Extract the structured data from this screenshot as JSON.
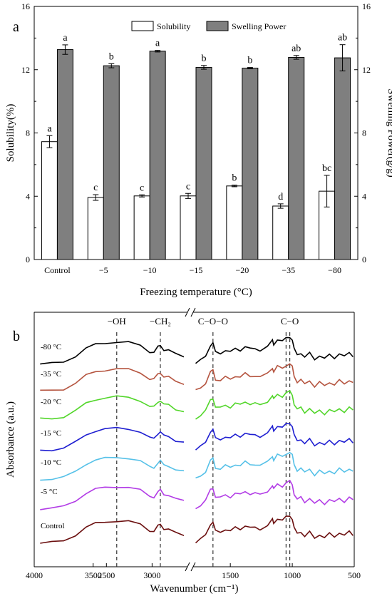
{
  "chart_data": [
    {
      "type": "bar",
      "panel_label": "a",
      "categories": [
        "Control",
        "−5",
        "−10",
        "−15",
        "−20",
        "−35",
        "−80"
      ],
      "xlabel": "Freezing temperature (°C)",
      "ylabel": "Solubility(%)",
      "ylabel_right": "Swelling Power(g/g)",
      "ylim": [
        0,
        16
      ],
      "yticks": [
        0,
        4,
        8,
        12,
        16
      ],
      "legend_position": "top-center",
      "series": [
        {
          "name": "Solubility",
          "color": "#ffffff",
          "values": [
            7.45,
            3.92,
            4.02,
            4.02,
            4.65,
            3.38,
            4.32
          ],
          "errors": [
            0.38,
            0.18,
            0.07,
            0.16,
            0.05,
            0.14,
            1.0
          ],
          "letters": [
            "a",
            "c",
            "c",
            "c",
            "b",
            "d",
            "bc"
          ]
        },
        {
          "name": "Swelling Power",
          "color": "#7f7f7f",
          "values": [
            13.27,
            12.25,
            13.17,
            12.15,
            12.1,
            12.78,
            12.75
          ],
          "errors": [
            0.3,
            0.13,
            0.05,
            0.12,
            0.04,
            0.12,
            0.83
          ],
          "letters": [
            "a",
            "b",
            "a",
            "b",
            "b",
            "ab",
            "ab"
          ]
        }
      ]
    },
    {
      "type": "line",
      "panel_label": "b",
      "xlabel": "Wavenumber (cm⁻¹)",
      "ylabel": "Absorbance (a.u.)",
      "x_reversed": true,
      "x_break": [
        2700,
        1800
      ],
      "xticks": [
        4000,
        3500,
        3000,
        2500,
        1500,
        1000,
        500
      ],
      "peak_labels": [
        {
          "label": "−OH",
          "wavenumber": 3300
        },
        {
          "label": "−CH₂",
          "wavenumber": 2930
        },
        {
          "label": "C−O−O",
          "wavenumber": 1640
        },
        {
          "label": "C−O",
          "wavenumber": 1020
        }
      ],
      "series": [
        {
          "name": "-80 °C",
          "color": "#000000"
        },
        {
          "name": "-35 °C",
          "color": "#b5543f"
        },
        {
          "name": "-20 °C",
          "color": "#52d62a"
        },
        {
          "name": "-15 °C",
          "color": "#1f1fd1"
        },
        {
          "name": "-10 °C",
          "color": "#56c1e8"
        },
        {
          "name": "-5 °C",
          "color": "#b23ce6"
        },
        {
          "name": "Control",
          "color": "#6b0f0f"
        }
      ]
    }
  ]
}
